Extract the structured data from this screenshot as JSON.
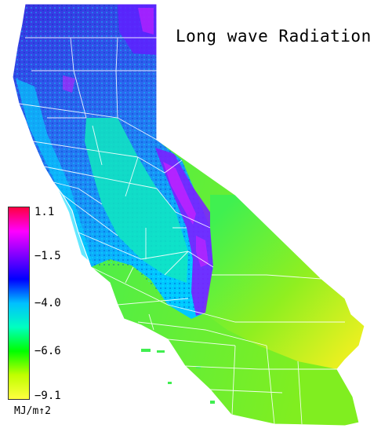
{
  "title": "Long wave Radiation",
  "legend": {
    "units": "MJ/m↑2",
    "ticks": [
      "1.1",
      "−1.5",
      "−4.0",
      "−6.6",
      "−9.1"
    ],
    "colors": [
      "#ff0040",
      "#ff00ff",
      "#8000ff",
      "#0000ff",
      "#00c0ff",
      "#00ffc0",
      "#00ff00",
      "#c0ff00",
      "#ffff40"
    ]
  },
  "map": {
    "region": "California",
    "palette": {
      "north_mountains": "#2a3fd8",
      "coast": "#00d8ff",
      "central_valley": "#00e8b0",
      "sierra_high": "#8a1aff",
      "desert": "#b8f000",
      "south": "#40f040",
      "boundaries": "#ffffff"
    }
  }
}
